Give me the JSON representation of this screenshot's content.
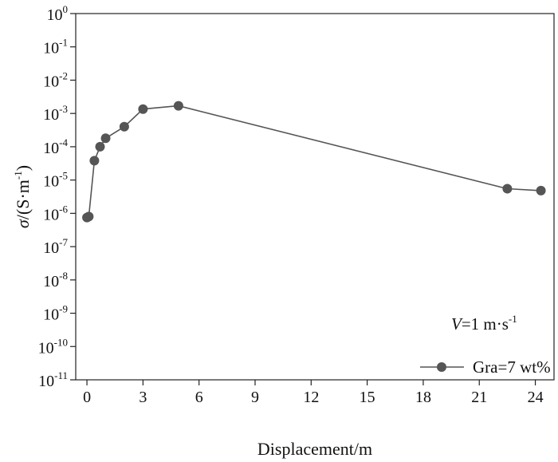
{
  "chart_data": {
    "type": "line",
    "title": "",
    "xlabel": "Displacement/m",
    "ylabel": {
      "symbol": "σ",
      "unit_prefix": "/(S·m",
      "unit_exp": "-1",
      "unit_suffix": ")"
    },
    "xlim": [
      -0.6,
      25
    ],
    "ylim": [
      1e-11,
      1
    ],
    "yscale": "log",
    "x_ticks": [
      0,
      3,
      6,
      9,
      12,
      15,
      18,
      21,
      24
    ],
    "y_tick_exponents": [
      0,
      -1,
      -2,
      -3,
      -4,
      -5,
      -6,
      -7,
      -8,
      -9,
      -10,
      -11
    ],
    "y_tick_base": "10",
    "grid": false,
    "legend_position": "bottom-right",
    "annotation": {
      "var": "V",
      "text_main": "=1 m·s",
      "text_exp": "-1"
    },
    "series": [
      {
        "name": "Gra=7 wt%",
        "color": "#555555",
        "marker": "circle",
        "x": [
          0.0,
          0.1,
          0.4,
          0.7,
          1.0,
          2.0,
          3.0,
          4.9,
          22.5,
          24.3
        ],
        "y": [
          7.5e-07,
          8e-07,
          3.8e-05,
          0.0001,
          0.00018,
          0.0004,
          0.00135,
          0.0017,
          5.5e-06,
          4.8e-06
        ]
      }
    ]
  }
}
